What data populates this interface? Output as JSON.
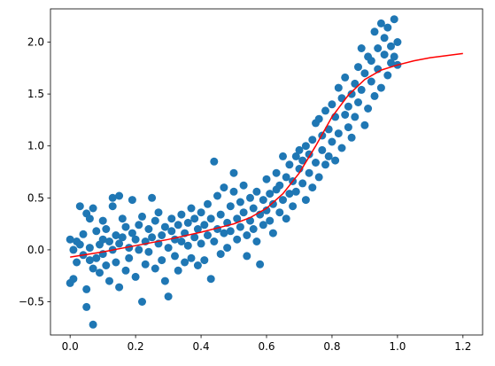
{
  "chart_data": {
    "type": "scatter",
    "title": "",
    "xlabel": "",
    "ylabel": "",
    "xlim": [
      -0.06,
      1.26
    ],
    "ylim": [
      -0.82,
      2.32
    ],
    "grid": false,
    "x_ticks": [
      "0.0",
      "0.2",
      "0.4",
      "0.6",
      "0.8",
      "1.0",
      "1.2"
    ],
    "y_ticks": [
      "−0.5",
      "0.0",
      "0.5",
      "1.0",
      "1.5",
      "2.0"
    ],
    "colors": {
      "scatter": "#1f77b4",
      "line": "#ff0000"
    },
    "series": [
      {
        "kind": "scatter",
        "points": [
          [
            0.0,
            0.1
          ],
          [
            0.0,
            -0.32
          ],
          [
            0.01,
            -0.28
          ],
          [
            0.01,
            0.0
          ],
          [
            0.02,
            0.08
          ],
          [
            0.02,
            -0.12
          ],
          [
            0.03,
            0.42
          ],
          [
            0.03,
            0.05
          ],
          [
            0.04,
            -0.05
          ],
          [
            0.04,
            0.15
          ],
          [
            0.05,
            -0.55
          ],
          [
            0.05,
            0.35
          ],
          [
            0.05,
            -0.38
          ],
          [
            0.06,
            -0.1
          ],
          [
            0.06,
            0.3
          ],
          [
            0.06,
            0.02
          ],
          [
            0.07,
            -0.72
          ],
          [
            0.07,
            0.4
          ],
          [
            0.07,
            -0.18
          ],
          [
            0.08,
            0.18
          ],
          [
            0.08,
            -0.08
          ],
          [
            0.09,
            0.05
          ],
          [
            0.09,
            -0.22
          ],
          [
            0.1,
            0.28
          ],
          [
            0.1,
            0.1
          ],
          [
            0.1,
            -0.04
          ],
          [
            0.11,
            -0.15
          ],
          [
            0.11,
            0.2
          ],
          [
            0.12,
            0.08
          ],
          [
            0.12,
            -0.3
          ],
          [
            0.13,
            0.5
          ],
          [
            0.13,
            0.42
          ],
          [
            0.13,
            0.0
          ],
          [
            0.14,
            -0.12
          ],
          [
            0.14,
            0.14
          ],
          [
            0.15,
            0.52
          ],
          [
            0.15,
            -0.36
          ],
          [
            0.15,
            0.06
          ],
          [
            0.16,
            0.3
          ],
          [
            0.16,
            0.12
          ],
          [
            0.17,
            -0.2
          ],
          [
            0.17,
            0.22
          ],
          [
            0.18,
            0.02
          ],
          [
            0.18,
            -0.08
          ],
          [
            0.19,
            0.16
          ],
          [
            0.19,
            0.48
          ],
          [
            0.2,
            0.1
          ],
          [
            0.2,
            -0.26
          ],
          [
            0.21,
            0.24
          ],
          [
            0.21,
            0.0
          ],
          [
            0.22,
            -0.5
          ],
          [
            0.22,
            0.32
          ],
          [
            0.23,
            0.08
          ],
          [
            0.23,
            -0.14
          ],
          [
            0.24,
            0.2
          ],
          [
            0.24,
            -0.02
          ],
          [
            0.25,
            0.12
          ],
          [
            0.25,
            0.5
          ],
          [
            0.26,
            -0.18
          ],
          [
            0.26,
            0.28
          ],
          [
            0.27,
            0.06
          ],
          [
            0.27,
            0.36
          ],
          [
            0.28,
            -0.1
          ],
          [
            0.28,
            0.14
          ],
          [
            0.29,
            -0.3
          ],
          [
            0.29,
            0.22
          ],
          [
            0.3,
            0.02
          ],
          [
            0.3,
            -0.45
          ],
          [
            0.31,
            0.18
          ],
          [
            0.31,
            0.3
          ],
          [
            0.32,
            -0.06
          ],
          [
            0.32,
            0.1
          ],
          [
            0.33,
            0.24
          ],
          [
            0.33,
            -0.2
          ],
          [
            0.34,
            0.34
          ],
          [
            0.34,
            0.08
          ],
          [
            0.35,
            0.16
          ],
          [
            0.35,
            -0.12
          ],
          [
            0.36,
            0.26
          ],
          [
            0.36,
            0.04
          ],
          [
            0.37,
            0.4
          ],
          [
            0.37,
            -0.08
          ],
          [
            0.38,
            0.12
          ],
          [
            0.38,
            0.3
          ],
          [
            0.39,
            -0.15
          ],
          [
            0.39,
            0.2
          ],
          [
            0.4,
            0.36
          ],
          [
            0.4,
            0.06
          ],
          [
            0.41,
            0.24
          ],
          [
            0.41,
            -0.1
          ],
          [
            0.42,
            0.14
          ],
          [
            0.42,
            0.44
          ],
          [
            0.43,
            -0.28
          ],
          [
            0.43,
            0.3
          ],
          [
            0.44,
            0.08
          ],
          [
            0.44,
            0.85
          ],
          [
            0.45,
            0.2
          ],
          [
            0.45,
            0.52
          ],
          [
            0.46,
            -0.04
          ],
          [
            0.46,
            0.34
          ],
          [
            0.47,
            0.16
          ],
          [
            0.47,
            0.6
          ],
          [
            0.48,
            0.26
          ],
          [
            0.48,
            0.02
          ],
          [
            0.49,
            0.42
          ],
          [
            0.49,
            0.18
          ],
          [
            0.5,
            0.56
          ],
          [
            0.5,
            0.74
          ],
          [
            0.51,
            0.3
          ],
          [
            0.51,
            0.1
          ],
          [
            0.52,
            0.46
          ],
          [
            0.52,
            0.22
          ],
          [
            0.53,
            0.36
          ],
          [
            0.53,
            0.62
          ],
          [
            0.54,
            0.14
          ],
          [
            0.54,
            -0.06
          ],
          [
            0.55,
            0.5
          ],
          [
            0.55,
            0.28
          ],
          [
            0.56,
            0.4
          ],
          [
            0.56,
            0.2
          ],
          [
            0.57,
            0.56
          ],
          [
            0.57,
            0.08
          ],
          [
            0.58,
            0.34
          ],
          [
            0.58,
            -0.14
          ],
          [
            0.59,
            0.24
          ],
          [
            0.59,
            0.48
          ],
          [
            0.6,
            0.38
          ],
          [
            0.6,
            0.68
          ],
          [
            0.61,
            0.28
          ],
          [
            0.61,
            0.54
          ],
          [
            0.62,
            0.44
          ],
          [
            0.62,
            0.16
          ],
          [
            0.63,
            0.58
          ],
          [
            0.63,
            0.74
          ],
          [
            0.64,
            0.36
          ],
          [
            0.64,
            0.62
          ],
          [
            0.65,
            0.48
          ],
          [
            0.65,
            0.9
          ],
          [
            0.66,
            0.3
          ],
          [
            0.66,
            0.7
          ],
          [
            0.67,
            0.54
          ],
          [
            0.67,
            0.82
          ],
          [
            0.68,
            0.42
          ],
          [
            0.68,
            0.66
          ],
          [
            0.69,
            0.9
          ],
          [
            0.69,
            0.56
          ],
          [
            0.7,
            0.78
          ],
          [
            0.7,
            0.96
          ],
          [
            0.71,
            0.64
          ],
          [
            0.71,
            0.86
          ],
          [
            0.72,
            0.48
          ],
          [
            0.72,
            1.0
          ],
          [
            0.73,
            0.74
          ],
          [
            0.73,
            0.92
          ],
          [
            0.74,
            0.6
          ],
          [
            0.74,
            1.06
          ],
          [
            0.75,
            0.84
          ],
          [
            0.75,
            1.22
          ],
          [
            0.76,
            0.7
          ],
          [
            0.76,
            1.26
          ],
          [
            0.77,
            0.96
          ],
          [
            0.77,
            1.1
          ],
          [
            0.78,
            0.82
          ],
          [
            0.78,
            1.34
          ],
          [
            0.79,
            1.16
          ],
          [
            0.79,
            0.9
          ],
          [
            0.8,
            1.04
          ],
          [
            0.8,
            1.4
          ],
          [
            0.81,
            0.86
          ],
          [
            0.81,
            1.28
          ],
          [
            0.82,
            1.56
          ],
          [
            0.82,
            1.12
          ],
          [
            0.83,
            0.98
          ],
          [
            0.83,
            1.46
          ],
          [
            0.84,
            1.3
          ],
          [
            0.84,
            1.66
          ],
          [
            0.85,
            1.18
          ],
          [
            0.85,
            1.38
          ],
          [
            0.86,
            1.5
          ],
          [
            0.86,
            1.08
          ],
          [
            0.87,
            1.6
          ],
          [
            0.87,
            1.28
          ],
          [
            0.88,
            1.76
          ],
          [
            0.88,
            1.42
          ],
          [
            0.89,
            1.94
          ],
          [
            0.89,
            1.54
          ],
          [
            0.9,
            1.2
          ],
          [
            0.9,
            1.7
          ],
          [
            0.91,
            1.86
          ],
          [
            0.91,
            1.36
          ],
          [
            0.92,
            1.62
          ],
          [
            0.92,
            1.82
          ],
          [
            0.93,
            2.1
          ],
          [
            0.93,
            1.48
          ],
          [
            0.94,
            1.94
          ],
          [
            0.94,
            1.74
          ],
          [
            0.95,
            2.18
          ],
          [
            0.95,
            1.56
          ],
          [
            0.96,
            1.88
          ],
          [
            0.96,
            2.04
          ],
          [
            0.97,
            1.68
          ],
          [
            0.97,
            2.14
          ],
          [
            0.98,
            1.8
          ],
          [
            0.98,
            1.96
          ],
          [
            0.99,
            2.22
          ],
          [
            0.99,
            1.86
          ],
          [
            1.0,
            2.0
          ],
          [
            1.0,
            1.78
          ]
        ]
      },
      {
        "kind": "line",
        "points": [
          [
            0.0,
            -0.07
          ],
          [
            0.1,
            -0.02
          ],
          [
            0.2,
            0.04
          ],
          [
            0.3,
            0.1
          ],
          [
            0.4,
            0.17
          ],
          [
            0.5,
            0.25
          ],
          [
            0.55,
            0.31
          ],
          [
            0.6,
            0.4
          ],
          [
            0.65,
            0.54
          ],
          [
            0.7,
            0.74
          ],
          [
            0.75,
            1.0
          ],
          [
            0.8,
            1.28
          ],
          [
            0.85,
            1.49
          ],
          [
            0.9,
            1.64
          ],
          [
            0.95,
            1.73
          ],
          [
            1.0,
            1.78
          ],
          [
            1.05,
            1.82
          ],
          [
            1.1,
            1.85
          ],
          [
            1.15,
            1.87
          ],
          [
            1.2,
            1.89
          ]
        ]
      }
    ]
  }
}
